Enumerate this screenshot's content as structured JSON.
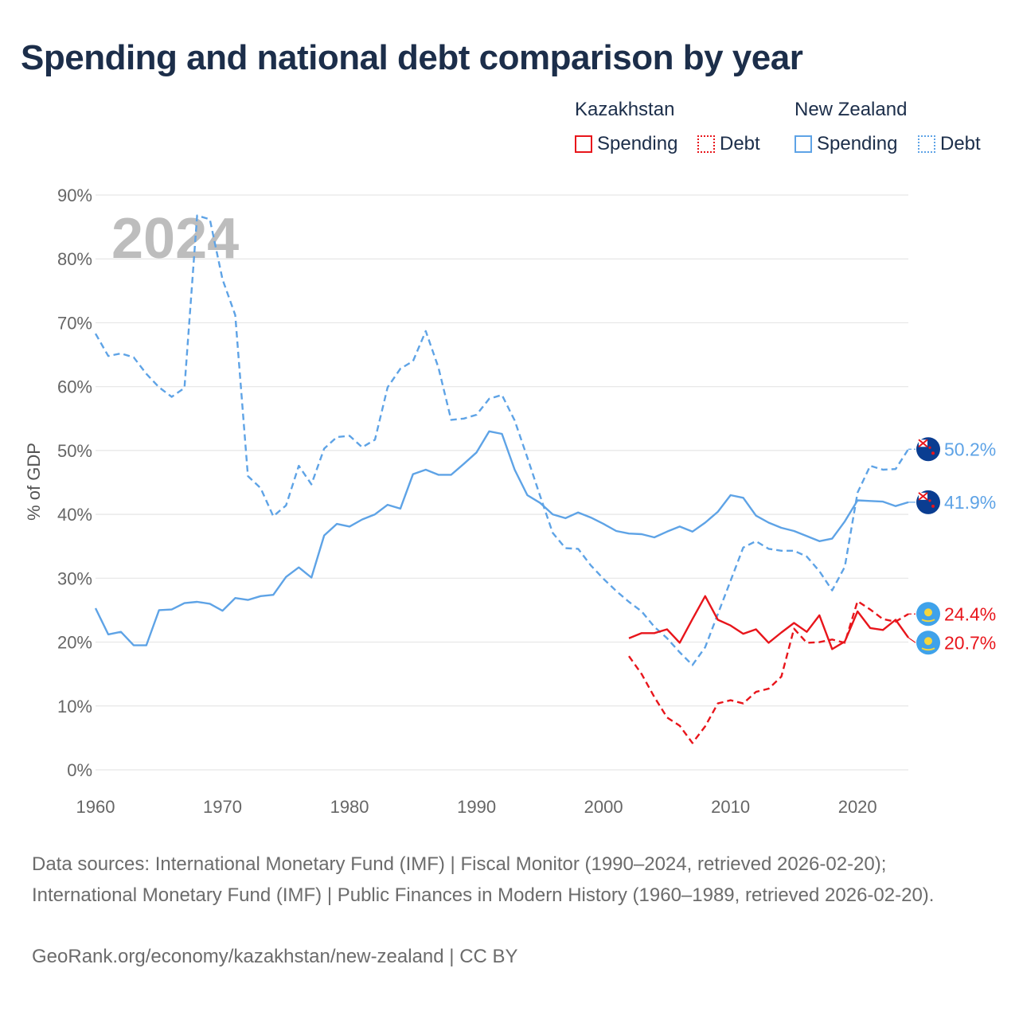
{
  "title": "Spending and national debt comparison by year",
  "legend": {
    "groups": [
      {
        "name": "Kazakhstan",
        "color": "#e8151b",
        "items": [
          {
            "label": "Spending",
            "style": "solid"
          },
          {
            "label": "Debt",
            "style": "dotted"
          }
        ]
      },
      {
        "name": "New Zealand",
        "color": "#5ea3e6",
        "items": [
          {
            "label": "Spending",
            "style": "solid"
          },
          {
            "label": "Debt",
            "style": "dotted"
          }
        ]
      }
    ]
  },
  "year_overlay": "2024",
  "chart_data": {
    "type": "line",
    "ylabel": "% of GDP",
    "xlabel": "",
    "xlim": [
      1960,
      2024
    ],
    "ylim": [
      0,
      90
    ],
    "x_ticks": [
      1960,
      1970,
      1980,
      1990,
      2000,
      2010,
      2020
    ],
    "x_tick_labels": [
      "1960",
      "1970",
      "1980",
      "1990",
      "2000",
      "2010",
      "2020"
    ],
    "y_ticks": [
      0,
      10,
      20,
      30,
      40,
      50,
      60,
      70,
      80,
      90
    ],
    "y_tick_labels": [
      "0%",
      "10%",
      "20%",
      "30%",
      "40%",
      "50%",
      "60%",
      "70%",
      "80%",
      "90%"
    ],
    "grid": "horizontal",
    "series": [
      {
        "name": "New Zealand Debt",
        "country": "New Zealand",
        "color": "#5ea3e6",
        "dash": true,
        "x": [
          1960,
          1961,
          1962,
          1963,
          1964,
          1965,
          1966,
          1967,
          1968,
          1969,
          1970,
          1971,
          1972,
          1973,
          1974,
          1975,
          1976,
          1977,
          1978,
          1979,
          1980,
          1981,
          1982,
          1983,
          1984,
          1985,
          1986,
          1987,
          1988,
          1989,
          1990,
          1991,
          1992,
          1993,
          1994,
          1995,
          1996,
          1997,
          1998,
          1999,
          2000,
          2001,
          2002,
          2003,
          2004,
          2005,
          2006,
          2007,
          2008,
          2009,
          2010,
          2011,
          2012,
          2013,
          2014,
          2015,
          2016,
          2017,
          2018,
          2019,
          2020,
          2021,
          2022,
          2023,
          2024
        ],
        "values": [
          68.3,
          64.8,
          65.2,
          64.6,
          62.0,
          59.9,
          58.4,
          59.8,
          86.8,
          86.2,
          76.8,
          71.2,
          46.0,
          44.1,
          39.7,
          41.4,
          47.6,
          44.7,
          50.3,
          52.1,
          52.3,
          50.5,
          51.7,
          59.9,
          62.8,
          64.0,
          68.7,
          63.0,
          54.8,
          55.0,
          55.6,
          58.1,
          58.7,
          54.7,
          48.9,
          42.9,
          37.1,
          34.7,
          34.6,
          32.0,
          29.9,
          28.0,
          26.3,
          24.8,
          22.4,
          20.6,
          18.4,
          16.4,
          19.2,
          24.4,
          29.6,
          34.8,
          35.8,
          34.6,
          34.3,
          34.3,
          33.4,
          31.1,
          28.1,
          31.8,
          43.4,
          47.6,
          47.0,
          47.1,
          50.2
        ],
        "end_label": "50.2%"
      },
      {
        "name": "New Zealand Spending",
        "country": "New Zealand",
        "color": "#5ea3e6",
        "dash": false,
        "x": [
          1960,
          1961,
          1962,
          1963,
          1964,
          1965,
          1966,
          1967,
          1968,
          1969,
          1970,
          1971,
          1972,
          1973,
          1974,
          1975,
          1976,
          1977,
          1978,
          1979,
          1980,
          1981,
          1982,
          1983,
          1984,
          1985,
          1986,
          1987,
          1988,
          1989,
          1990,
          1991,
          1992,
          1993,
          1994,
          1995,
          1996,
          1997,
          1998,
          1999,
          2000,
          2001,
          2002,
          2003,
          2004,
          2005,
          2006,
          2007,
          2008,
          2009,
          2010,
          2011,
          2012,
          2013,
          2014,
          2015,
          2016,
          2017,
          2018,
          2019,
          2020,
          2021,
          2022,
          2023,
          2024
        ],
        "values": [
          25.3,
          21.2,
          21.6,
          19.5,
          19.5,
          25.0,
          25.1,
          26.1,
          26.3,
          26.0,
          24.9,
          26.9,
          26.6,
          27.2,
          27.4,
          30.2,
          31.7,
          30.1,
          36.7,
          38.5,
          38.1,
          39.2,
          40.0,
          41.5,
          40.9,
          46.3,
          47.0,
          46.2,
          46.2,
          47.9,
          49.7,
          53.0,
          52.6,
          47.0,
          43.0,
          41.8,
          40.0,
          39.4,
          40.3,
          39.5,
          38.5,
          37.4,
          37.0,
          36.9,
          36.4,
          37.3,
          38.1,
          37.3,
          38.7,
          40.4,
          43.0,
          42.6,
          39.8,
          38.7,
          37.9,
          37.4,
          36.6,
          35.8,
          36.2,
          38.9,
          42.2,
          42.1,
          42.0,
          41.3,
          41.9
        ],
        "end_label": "41.9%"
      },
      {
        "name": "Kazakhstan Debt",
        "country": "Kazakhstan",
        "color": "#e8151b",
        "dash": true,
        "x": [
          2002,
          2003,
          2004,
          2005,
          2006,
          2007,
          2008,
          2009,
          2010,
          2011,
          2012,
          2013,
          2014,
          2015,
          2016,
          2017,
          2018,
          2019,
          2020,
          2021,
          2022,
          2023,
          2024
        ],
        "values": [
          17.8,
          15.0,
          11.4,
          8.2,
          6.9,
          4.2,
          6.8,
          10.4,
          10.9,
          10.4,
          12.2,
          12.7,
          14.6,
          22.1,
          19.9,
          20.0,
          20.4,
          19.9,
          26.4,
          25.1,
          23.6,
          23.2,
          24.4
        ],
        "end_label": "24.4%"
      },
      {
        "name": "Kazakhstan Spending",
        "country": "Kazakhstan",
        "color": "#e8151b",
        "dash": false,
        "x": [
          2002,
          2003,
          2004,
          2005,
          2006,
          2007,
          2008,
          2009,
          2010,
          2011,
          2012,
          2013,
          2014,
          2015,
          2016,
          2017,
          2018,
          2019,
          2020,
          2021,
          2022,
          2023,
          2024
        ],
        "values": [
          20.6,
          21.4,
          21.4,
          22.0,
          19.9,
          23.6,
          27.2,
          23.5,
          22.6,
          21.3,
          22.0,
          19.9,
          21.5,
          23.0,
          21.6,
          24.2,
          18.9,
          20.1,
          24.8,
          22.2,
          21.9,
          23.5,
          20.7
        ],
        "end_label": "20.7%"
      }
    ]
  },
  "footer": {
    "sources": "Data sources: International Monetary Fund (IMF) | Fiscal Monitor (1990–2024, retrieved 2026-02-20); International Monetary Fund (IMF) | Public Finances in Modern History (1960–1989, retrieved 2026-02-20).",
    "attribution": "GeoRank.org/economy/kazakhstan/new-zealand | CC BY"
  }
}
